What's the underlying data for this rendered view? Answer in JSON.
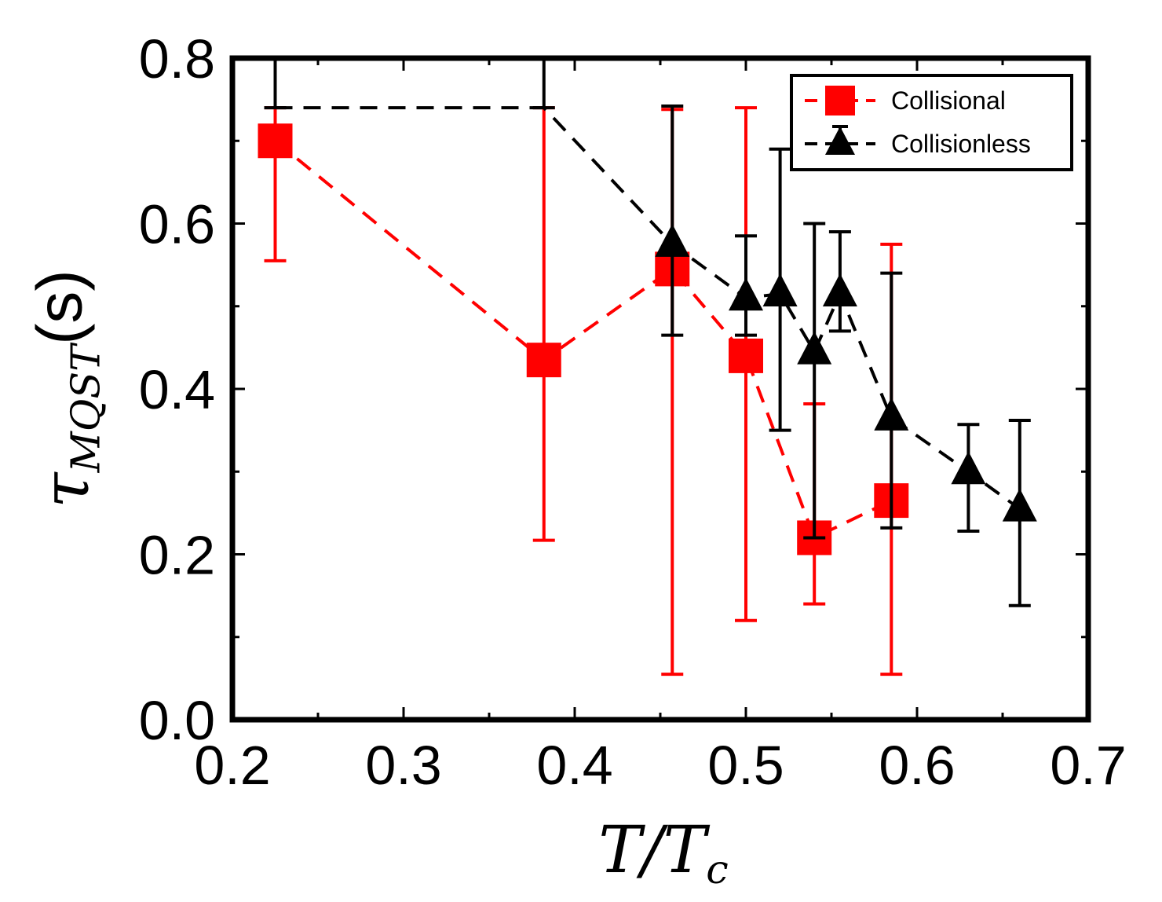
{
  "chart_data": {
    "type": "scatter",
    "xlabel": "T/T_c",
    "ylabel": "τ_MQST(s)",
    "xlim": [
      0.2,
      0.7
    ],
    "ylim": [
      0.0,
      0.8
    ],
    "x_ticks": [
      "0.2",
      "0.3",
      "0.4",
      "0.5",
      "0.6",
      "0.7"
    ],
    "y_ticks": [
      "0.0",
      "0.2",
      "0.4",
      "0.6",
      "0.8"
    ],
    "grid": false,
    "legend": {
      "placement": "top-right"
    },
    "series": [
      {
        "name": "Collisional",
        "color": "#ff0000",
        "marker": "square",
        "line": "dashed",
        "points": [
          {
            "x": 0.225,
            "y": 0.7,
            "err_low": 0.555,
            "err_high": 0.74
          },
          {
            "x": 0.382,
            "y": 0.435,
            "err_low": 0.217,
            "err_high": 0.74
          },
          {
            "x": 0.457,
            "y": 0.545,
            "err_low": 0.055,
            "err_high": 0.738
          },
          {
            "x": 0.5,
            "y": 0.44,
            "err_low": 0.12,
            "err_high": 0.74
          },
          {
            "x": 0.54,
            "y": 0.22,
            "err_low": 0.14,
            "err_high": 0.382
          },
          {
            "x": 0.585,
            "y": 0.265,
            "err_low": 0.055,
            "err_high": 0.575
          }
        ]
      },
      {
        "name": "Collisionless",
        "color": "#000000",
        "marker": "triangle",
        "line": "dashed",
        "points": [
          {
            "x": 0.225,
            "y": 0.74,
            "err_low": 0.74,
            "err_high": 0.85
          },
          {
            "x": 0.382,
            "y": 0.74,
            "err_low": 0.74,
            "err_high": 0.85
          },
          {
            "x": 0.457,
            "y": 0.575,
            "err_low": 0.465,
            "err_high": 0.742
          },
          {
            "x": 0.5,
            "y": 0.51,
            "err_low": 0.465,
            "err_high": 0.585
          },
          {
            "x": 0.52,
            "y": 0.515,
            "err_low": 0.35,
            "err_high": 0.69
          },
          {
            "x": 0.54,
            "y": 0.445,
            "err_low": 0.22,
            "err_high": 0.6
          },
          {
            "x": 0.555,
            "y": 0.515,
            "err_low": 0.47,
            "err_high": 0.59
          },
          {
            "x": 0.585,
            "y": 0.365,
            "err_low": 0.232,
            "err_high": 0.54
          },
          {
            "x": 0.63,
            "y": 0.3,
            "err_low": 0.228,
            "err_high": 0.357
          },
          {
            "x": 0.66,
            "y": 0.255,
            "err_low": 0.138,
            "err_high": 0.362
          }
        ]
      }
    ]
  }
}
